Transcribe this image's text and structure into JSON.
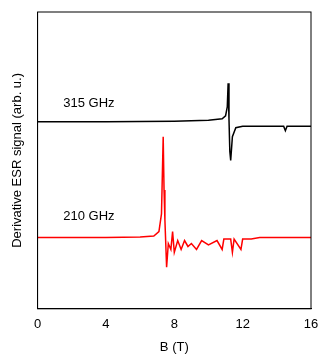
{
  "chart_data": {
    "type": "line",
    "x_label": "B (T)",
    "y_label": "Derivative ESR signal (arb. u.)",
    "xlim": [
      0,
      16
    ],
    "xticks": [
      0,
      4,
      8,
      12,
      16
    ],
    "ylim": [
      0,
      10
    ],
    "tick_labels": "x",
    "grid": false,
    "series": [
      {
        "name": "315 GHz",
        "color": "#000000",
        "x": [
          0,
          4,
          8,
          10,
          10.8,
          11.0,
          11.1,
          11.15,
          11.2,
          11.25,
          11.3,
          11.4,
          11.6,
          12,
          14,
          14.4,
          14.5,
          14.6,
          16
        ],
        "values": [
          6.3,
          6.3,
          6.32,
          6.35,
          6.4,
          6.5,
          6.8,
          7.6,
          6.4,
          5.3,
          5.0,
          5.8,
          6.1,
          6.15,
          6.15,
          6.15,
          6.0,
          6.15,
          6.15
        ]
      },
      {
        "name": "210 GHz",
        "color": "#ff0000",
        "x": [
          0,
          2,
          4,
          6,
          6.8,
          7.1,
          7.25,
          7.3,
          7.35,
          7.4,
          7.45,
          7.55,
          7.65,
          7.8,
          7.9,
          8.0,
          8.2,
          8.4,
          8.6,
          8.8,
          9.0,
          9.3,
          9.6,
          10,
          10.5,
          10.8,
          10.9,
          11.3,
          11.4,
          11.5,
          11.9,
          12.0,
          12.5,
          13,
          16
        ],
        "values": [
          2.4,
          2.4,
          2.4,
          2.42,
          2.45,
          2.6,
          3.2,
          4.5,
          5.8,
          4.0,
          3.0,
          1.4,
          2.2,
          2.0,
          2.6,
          1.9,
          2.3,
          2.0,
          2.3,
          2.1,
          2.2,
          2.0,
          2.3,
          2.15,
          2.3,
          2.0,
          2.35,
          2.35,
          1.9,
          2.35,
          2.0,
          2.35,
          2.35,
          2.4,
          2.4
        ]
      }
    ],
    "annotations": [
      {
        "text": "315 GHz",
        "x": 1.5,
        "y": 6.8
      },
      {
        "text": "210 GHz",
        "x": 1.5,
        "y": 3.0
      }
    ]
  }
}
